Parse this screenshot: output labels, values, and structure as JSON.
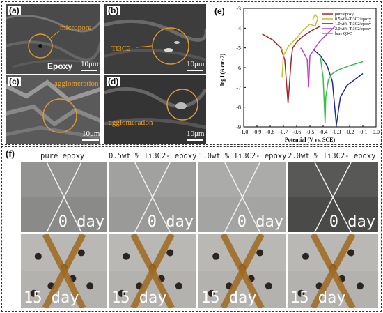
{
  "sem": {
    "a": {
      "label": "(a)",
      "note": "micropore",
      "word": "Epoxy",
      "scale": "10μm"
    },
    "b": {
      "label": "(b)",
      "note": "Ti3C2",
      "scale": "10μm"
    },
    "c": {
      "label": "(c)",
      "note": "agglomeration",
      "scale": "10μm"
    },
    "d": {
      "label": "(d)",
      "note": "agglomeration",
      "scale": "10μm"
    }
  },
  "chart_label": "(e)",
  "chart_data": {
    "type": "line",
    "xlabel": "Potential (V vs. SCE)",
    "ylabel": "log i (A cm-2)",
    "xlim": [
      -1.0,
      0.0
    ],
    "ylim": [
      -9,
      -3
    ],
    "xticks": [
      "-1.0",
      "-0.9",
      "-0.8",
      "-0.7",
      "-0.6",
      "-0.5",
      "-0.4",
      "-0.3",
      "-0.2",
      "-0.1",
      "0.0"
    ],
    "yticks": [
      "-3",
      "-4",
      "-5",
      "-6",
      "-7",
      "-8",
      "-9"
    ],
    "legend_position": "top-right",
    "series": [
      {
        "name": "pure epoxy",
        "color": "#a0282d",
        "x": [
          -0.86,
          -0.78,
          -0.72,
          -0.69,
          -0.665,
          -0.64,
          -0.63,
          -0.6,
          -0.55,
          -0.48,
          -0.42
        ],
        "y": [
          -4.3,
          -4.6,
          -5.0,
          -5.6,
          -7.8,
          -5.5,
          -5.0,
          -4.7,
          -4.4,
          -4.1,
          -3.9
        ]
      },
      {
        "name": "0.5wt%-Ti3C2/epoxy",
        "color": "#c9bd27",
        "x": [
          -0.72,
          -0.7,
          -0.71,
          -0.7,
          -0.66,
          -0.6,
          -0.55,
          -0.5,
          -0.46,
          -0.44,
          -0.46,
          -0.48
        ],
        "y": [
          -4.9,
          -5.3,
          -6.5,
          -5.4,
          -4.9,
          -4.5,
          -4.1,
          -3.8,
          -3.9,
          -3.5,
          -3.3,
          -3.6
        ]
      },
      {
        "name": "1.0wt%-Ti3C2/epoxy",
        "color": "#1b2a9a",
        "x": [
          -0.47,
          -0.42,
          -0.37,
          -0.33,
          -0.3,
          -0.27,
          -0.22,
          -0.16,
          -0.1
        ],
        "y": [
          -5.1,
          -5.4,
          -5.9,
          -6.7,
          -8.9,
          -7.5,
          -6.9,
          -6.6,
          -6.3
        ]
      },
      {
        "name": "2.0wt%-Ti3C2/epoxy",
        "color": "#c040c8",
        "x": [
          -0.57,
          -0.55,
          -0.52,
          -0.51,
          -0.5,
          -0.47,
          -0.43,
          -0.37,
          -0.31
        ],
        "y": [
          -5.0,
          -5.2,
          -5.6,
          -7.0,
          -5.4,
          -5.1,
          -4.7,
          -4.3,
          -3.9
        ]
      },
      {
        "name": "bare Q345",
        "color": "#34c244",
        "x": [
          -0.42,
          -0.4,
          -0.385,
          -0.38,
          -0.36,
          -0.33,
          -0.28,
          -0.2,
          -0.1
        ],
        "y": [
          -5.5,
          -6.5,
          -8.8,
          -7.5,
          -6.6,
          -6.3,
          -6.1,
          -5.9,
          -5.7
        ]
      }
    ]
  },
  "photos_label": "(f)",
  "captions": [
    "pure epoxy",
    "0.5wt % Ti3C2- epoxy",
    "1.0wt % Ti3C2- epoxy",
    "2.0wt % Ti3C2- epoxy"
  ],
  "day_labels": {
    "top": "0  day",
    "bottom": "15  day"
  }
}
